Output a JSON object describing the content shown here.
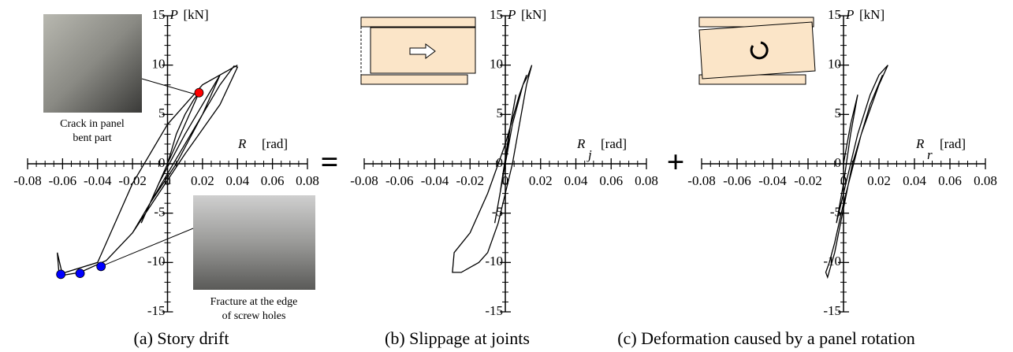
{
  "operators": [
    "=",
    "+"
  ],
  "chart_data": [
    {
      "type": "line",
      "caption": "(a) Story drift",
      "xlabel": {
        "symbol": "R",
        "unit": "[rad]"
      },
      "ylabel": {
        "symbol": "P",
        "unit": "[kN]"
      },
      "xlim": [
        -0.08,
        0.08
      ],
      "xticks": [
        -0.08,
        -0.06,
        -0.04,
        -0.02,
        0,
        0.02,
        0.04,
        0.06,
        0.08
      ],
      "ylim": [
        -15,
        15
      ],
      "yticks": [
        -15,
        -10,
        -5,
        0,
        5,
        10,
        15
      ],
      "minor_ticks": true,
      "x": [
        0,
        0.005,
        0.01,
        0.015,
        0.018,
        0.01,
        0,
        -0.01,
        -0.015,
        -0.005,
        0.01,
        0.025,
        0.03,
        0.02,
        0.005,
        -0.01,
        -0.02,
        -0.01,
        0.01,
        0.03,
        0.038,
        0.04,
        0.03,
        0.01,
        -0.005,
        -0.02,
        -0.035,
        -0.04,
        -0.05,
        -0.06,
        -0.063,
        -0.062,
        -0.04,
        -0.02,
        0,
        0.02,
        0.04
      ],
      "series": [
        {
          "color": "#000000",
          "values": [
            0,
            3,
            5,
            6.5,
            7.2,
            4,
            0,
            -4,
            -6,
            -2,
            3,
            7.5,
            9,
            5,
            0,
            -4,
            -7,
            -4,
            2,
            8,
            9.9,
            9.8,
            6,
            1,
            -3,
            -7,
            -9.8,
            -10.2,
            -11,
            -11.3,
            -9,
            -11.2,
            -10,
            -2,
            4,
            8,
            10
          ]
        }
      ],
      "points": [
        {
          "color": "#ff0000",
          "x": [
            0.018
          ],
          "values": [
            7.2
          ],
          "annotation": [
            "Crack in panel",
            "bent part"
          ]
        },
        {
          "color": "#0000ff",
          "x": [
            -0.061,
            -0.05,
            -0.038
          ],
          "values": [
            -11.2,
            -11.1,
            -10.4
          ],
          "annotation": [
            "Fracture at the edge",
            "of screw holes"
          ]
        }
      ]
    },
    {
      "type": "line",
      "caption": "(b) Slippage at joints",
      "xlabel": {
        "symbol": "R",
        "subscript": "j",
        "unit": "[rad]"
      },
      "ylabel": {
        "symbol": "P",
        "unit": "[kN]"
      },
      "xlim": [
        -0.08,
        0.08
      ],
      "xticks": [
        -0.08,
        -0.06,
        -0.04,
        -0.02,
        0,
        0.02,
        0.04,
        0.06,
        0.08
      ],
      "ylim": [
        -15,
        15
      ],
      "yticks": [
        -15,
        -10,
        -5,
        0,
        5,
        10,
        15
      ],
      "minor_ticks": true,
      "x": [
        0,
        0.003,
        0.006,
        0.002,
        -0.003,
        -0.006,
        -0.002,
        0.004,
        0.01,
        0.013,
        0.015,
        0.012,
        0.004,
        -0.004,
        -0.01,
        -0.015,
        -0.02,
        -0.025,
        -0.03,
        -0.029,
        -0.02,
        -0.01,
        0,
        0.008,
        0.012
      ],
      "series": [
        {
          "color": "#000000",
          "values": [
            0,
            4,
            7,
            3,
            -3,
            -6,
            -2,
            4,
            8,
            9,
            10,
            8,
            0,
            -6,
            -9,
            -10,
            -10.5,
            -11,
            -11,
            -9,
            -7,
            -3,
            2,
            7,
            9
          ]
        }
      ]
    },
    {
      "type": "line",
      "caption": "(c) Deformation caused by a panel rotation",
      "xlabel": {
        "symbol": "R",
        "subscript": "r",
        "unit": "[rad]"
      },
      "ylabel": {
        "symbol": "P",
        "unit": "[kN]"
      },
      "xlim": [
        -0.08,
        0.08
      ],
      "xticks": [
        -0.08,
        -0.06,
        -0.04,
        -0.02,
        0,
        0.02,
        0.04,
        0.06,
        0.08
      ],
      "ylim": [
        -15,
        15
      ],
      "yticks": [
        -15,
        -10,
        -5,
        0,
        5,
        10,
        15
      ],
      "minor_ticks": true,
      "x": [
        0,
        0.004,
        0.008,
        0.004,
        0,
        -0.004,
        0,
        0.008,
        0.015,
        0.02,
        0.025,
        0.02,
        0.01,
        0,
        -0.005,
        -0.008,
        -0.01,
        -0.009,
        -0.005,
        0.005,
        0.015,
        0.022
      ],
      "series": [
        {
          "color": "#000000",
          "values": [
            0,
            4,
            7,
            3,
            -2,
            -6,
            -3,
            3,
            7,
            9,
            10,
            8,
            3,
            -4,
            -8,
            -10,
            -11,
            -11.5,
            -9,
            0,
            6,
            9
          ]
        }
      ]
    }
  ]
}
